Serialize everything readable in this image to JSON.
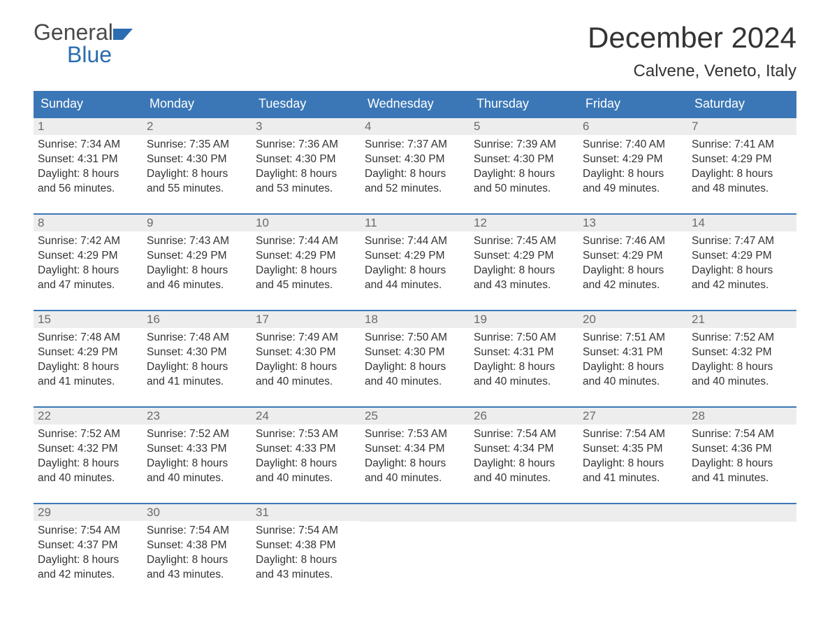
{
  "brand": {
    "text_general": "General",
    "text_blue": "Blue",
    "icon_color": "#2a6db0"
  },
  "header": {
    "month_title": "December 2024",
    "location": "Calvene, Veneto, Italy",
    "title_fontsize": 42,
    "location_fontsize": 24,
    "title_color": "#333333"
  },
  "calendar": {
    "type": "calendar-table",
    "header_bg": "#3b77b6",
    "header_text_color": "#ffffff",
    "week_border_color": "#3b77b6",
    "daynum_bg": "#ededed",
    "daynum_color": "#6a6a6a",
    "body_text_color": "#333333",
    "background_color": "#ffffff",
    "columns": 7,
    "weekdays": [
      "Sunday",
      "Monday",
      "Tuesday",
      "Wednesday",
      "Thursday",
      "Friday",
      "Saturday"
    ],
    "weeks": [
      [
        {
          "day": "1",
          "sunrise": "Sunrise: 7:34 AM",
          "sunset": "Sunset: 4:31 PM",
          "daylight1": "Daylight: 8 hours",
          "daylight2": "and 56 minutes."
        },
        {
          "day": "2",
          "sunrise": "Sunrise: 7:35 AM",
          "sunset": "Sunset: 4:30 PM",
          "daylight1": "Daylight: 8 hours",
          "daylight2": "and 55 minutes."
        },
        {
          "day": "3",
          "sunrise": "Sunrise: 7:36 AM",
          "sunset": "Sunset: 4:30 PM",
          "daylight1": "Daylight: 8 hours",
          "daylight2": "and 53 minutes."
        },
        {
          "day": "4",
          "sunrise": "Sunrise: 7:37 AM",
          "sunset": "Sunset: 4:30 PM",
          "daylight1": "Daylight: 8 hours",
          "daylight2": "and 52 minutes."
        },
        {
          "day": "5",
          "sunrise": "Sunrise: 7:39 AM",
          "sunset": "Sunset: 4:30 PM",
          "daylight1": "Daylight: 8 hours",
          "daylight2": "and 50 minutes."
        },
        {
          "day": "6",
          "sunrise": "Sunrise: 7:40 AM",
          "sunset": "Sunset: 4:29 PM",
          "daylight1": "Daylight: 8 hours",
          "daylight2": "and 49 minutes."
        },
        {
          "day": "7",
          "sunrise": "Sunrise: 7:41 AM",
          "sunset": "Sunset: 4:29 PM",
          "daylight1": "Daylight: 8 hours",
          "daylight2": "and 48 minutes."
        }
      ],
      [
        {
          "day": "8",
          "sunrise": "Sunrise: 7:42 AM",
          "sunset": "Sunset: 4:29 PM",
          "daylight1": "Daylight: 8 hours",
          "daylight2": "and 47 minutes."
        },
        {
          "day": "9",
          "sunrise": "Sunrise: 7:43 AM",
          "sunset": "Sunset: 4:29 PM",
          "daylight1": "Daylight: 8 hours",
          "daylight2": "and 46 minutes."
        },
        {
          "day": "10",
          "sunrise": "Sunrise: 7:44 AM",
          "sunset": "Sunset: 4:29 PM",
          "daylight1": "Daylight: 8 hours",
          "daylight2": "and 45 minutes."
        },
        {
          "day": "11",
          "sunrise": "Sunrise: 7:44 AM",
          "sunset": "Sunset: 4:29 PM",
          "daylight1": "Daylight: 8 hours",
          "daylight2": "and 44 minutes."
        },
        {
          "day": "12",
          "sunrise": "Sunrise: 7:45 AM",
          "sunset": "Sunset: 4:29 PM",
          "daylight1": "Daylight: 8 hours",
          "daylight2": "and 43 minutes."
        },
        {
          "day": "13",
          "sunrise": "Sunrise: 7:46 AM",
          "sunset": "Sunset: 4:29 PM",
          "daylight1": "Daylight: 8 hours",
          "daylight2": "and 42 minutes."
        },
        {
          "day": "14",
          "sunrise": "Sunrise: 7:47 AM",
          "sunset": "Sunset: 4:29 PM",
          "daylight1": "Daylight: 8 hours",
          "daylight2": "and 42 minutes."
        }
      ],
      [
        {
          "day": "15",
          "sunrise": "Sunrise: 7:48 AM",
          "sunset": "Sunset: 4:29 PM",
          "daylight1": "Daylight: 8 hours",
          "daylight2": "and 41 minutes."
        },
        {
          "day": "16",
          "sunrise": "Sunrise: 7:48 AM",
          "sunset": "Sunset: 4:30 PM",
          "daylight1": "Daylight: 8 hours",
          "daylight2": "and 41 minutes."
        },
        {
          "day": "17",
          "sunrise": "Sunrise: 7:49 AM",
          "sunset": "Sunset: 4:30 PM",
          "daylight1": "Daylight: 8 hours",
          "daylight2": "and 40 minutes."
        },
        {
          "day": "18",
          "sunrise": "Sunrise: 7:50 AM",
          "sunset": "Sunset: 4:30 PM",
          "daylight1": "Daylight: 8 hours",
          "daylight2": "and 40 minutes."
        },
        {
          "day": "19",
          "sunrise": "Sunrise: 7:50 AM",
          "sunset": "Sunset: 4:31 PM",
          "daylight1": "Daylight: 8 hours",
          "daylight2": "and 40 minutes."
        },
        {
          "day": "20",
          "sunrise": "Sunrise: 7:51 AM",
          "sunset": "Sunset: 4:31 PM",
          "daylight1": "Daylight: 8 hours",
          "daylight2": "and 40 minutes."
        },
        {
          "day": "21",
          "sunrise": "Sunrise: 7:52 AM",
          "sunset": "Sunset: 4:32 PM",
          "daylight1": "Daylight: 8 hours",
          "daylight2": "and 40 minutes."
        }
      ],
      [
        {
          "day": "22",
          "sunrise": "Sunrise: 7:52 AM",
          "sunset": "Sunset: 4:32 PM",
          "daylight1": "Daylight: 8 hours",
          "daylight2": "and 40 minutes."
        },
        {
          "day": "23",
          "sunrise": "Sunrise: 7:52 AM",
          "sunset": "Sunset: 4:33 PM",
          "daylight1": "Daylight: 8 hours",
          "daylight2": "and 40 minutes."
        },
        {
          "day": "24",
          "sunrise": "Sunrise: 7:53 AM",
          "sunset": "Sunset: 4:33 PM",
          "daylight1": "Daylight: 8 hours",
          "daylight2": "and 40 minutes."
        },
        {
          "day": "25",
          "sunrise": "Sunrise: 7:53 AM",
          "sunset": "Sunset: 4:34 PM",
          "daylight1": "Daylight: 8 hours",
          "daylight2": "and 40 minutes."
        },
        {
          "day": "26",
          "sunrise": "Sunrise: 7:54 AM",
          "sunset": "Sunset: 4:34 PM",
          "daylight1": "Daylight: 8 hours",
          "daylight2": "and 40 minutes."
        },
        {
          "day": "27",
          "sunrise": "Sunrise: 7:54 AM",
          "sunset": "Sunset: 4:35 PM",
          "daylight1": "Daylight: 8 hours",
          "daylight2": "and 41 minutes."
        },
        {
          "day": "28",
          "sunrise": "Sunrise: 7:54 AM",
          "sunset": "Sunset: 4:36 PM",
          "daylight1": "Daylight: 8 hours",
          "daylight2": "and 41 minutes."
        }
      ],
      [
        {
          "day": "29",
          "sunrise": "Sunrise: 7:54 AM",
          "sunset": "Sunset: 4:37 PM",
          "daylight1": "Daylight: 8 hours",
          "daylight2": "and 42 minutes."
        },
        {
          "day": "30",
          "sunrise": "Sunrise: 7:54 AM",
          "sunset": "Sunset: 4:38 PM",
          "daylight1": "Daylight: 8 hours",
          "daylight2": "and 43 minutes."
        },
        {
          "day": "31",
          "sunrise": "Sunrise: 7:54 AM",
          "sunset": "Sunset: 4:38 PM",
          "daylight1": "Daylight: 8 hours",
          "daylight2": "and 43 minutes."
        },
        null,
        null,
        null,
        null
      ]
    ]
  }
}
